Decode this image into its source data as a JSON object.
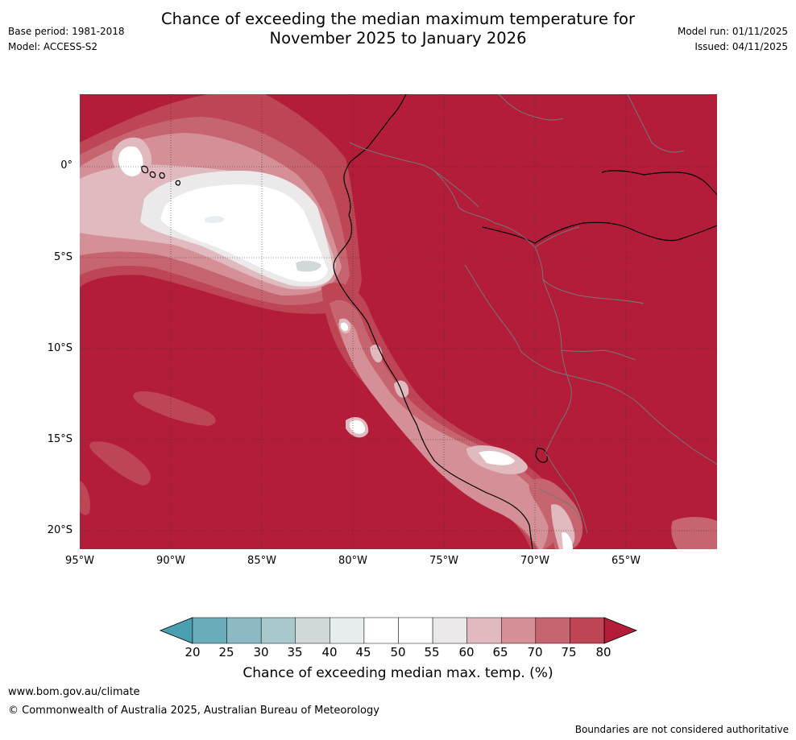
{
  "title": {
    "line1": "Chance of exceeding the median maximum temperature for",
    "line2": "November 2025 to January 2026"
  },
  "meta_left": {
    "base_period": "Base period: 1981-2018",
    "model": "Model: ACCESS-S2"
  },
  "meta_right": {
    "model_run": "Model run: 01/11/2025",
    "issued": "Issued: 04/11/2025"
  },
  "map": {
    "lat_labels": [
      "0°",
      "5°S",
      "10°S",
      "15°S",
      "20°S"
    ],
    "lon_labels": [
      "95°W",
      "90°W",
      "85°W",
      "80°W",
      "75°W",
      "70°W",
      "65°W"
    ],
    "extent": {
      "lon_min": -95,
      "lon_max": -60,
      "lat_min": -21,
      "lat_max": 4
    },
    "colors": {
      "c60": "#e0babf",
      "c65": "#d49096",
      "c70": "#c66570",
      "c75": "#bd4554",
      "c80": "#b31d3a",
      "c50": "#ffffff",
      "c55": "#ebe9ea",
      "c40": "#e8edf0",
      "c35": "#d1d8da",
      "coast": "#000000",
      "border": "#777777",
      "grid": "#333333"
    }
  },
  "colorbar": {
    "ticks": [
      "20",
      "25",
      "30",
      "35",
      "40",
      "45",
      "50",
      "55",
      "60",
      "65",
      "70",
      "75",
      "80"
    ],
    "colors": [
      "#6aacba",
      "#8bb9c4",
      "#a9c8cd",
      "#d1d8da",
      "#e8edf0",
      "#ffffff",
      "#ffffff",
      "#ebe9ea",
      "#e0babf",
      "#d49096",
      "#c66570",
      "#bd4554"
    ],
    "under_color": "#4aa0b0",
    "over_color": "#b31d3a",
    "label": "Chance of exceeding median max. temp. (%)"
  },
  "footer": {
    "url": "www.bom.gov.au/climate",
    "copyright": "© Commonwealth of Australia 2025, Australian Bureau of Meteorology",
    "disclaimer": "Boundaries are not considered authoritative"
  }
}
